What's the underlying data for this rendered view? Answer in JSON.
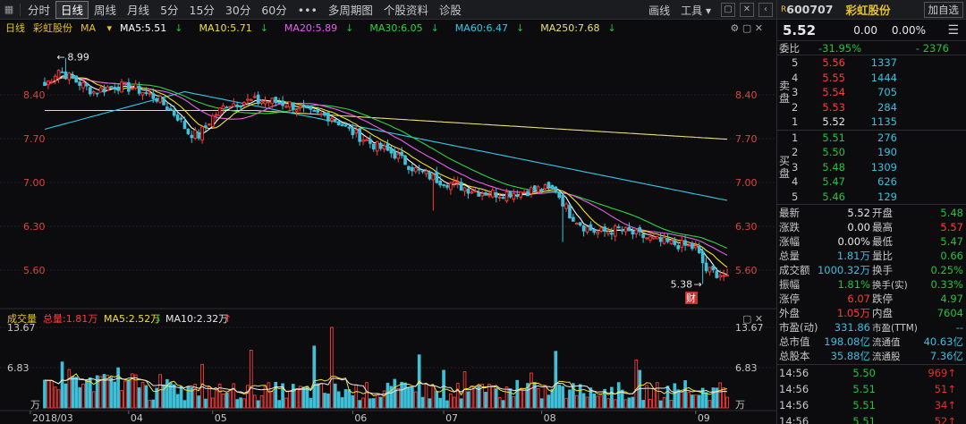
{
  "toolbar": {
    "tabs": [
      "分时",
      "日线",
      "周线",
      "月线",
      "5分",
      "15分",
      "30分",
      "60分",
      "•••",
      "多周期图",
      "个股资料",
      "诊股"
    ],
    "active_tab": "日线",
    "right": [
      "画线",
      "工具"
    ]
  },
  "legend": {
    "period": "日线",
    "stock": "彩虹股份",
    "indicator": "MA",
    "ma": [
      {
        "label": "MA5:5.51",
        "color": "#ffffff"
      },
      {
        "label": "MA10:5.71",
        "color": "#f2e02e"
      },
      {
        "label": "MA20:5.89",
        "color": "#e85fe8"
      },
      {
        "label": "MA30:6.05",
        "color": "#2ed240"
      },
      {
        "label": "MA60:6.47",
        "color": "#35c7e6"
      },
      {
        "label": "MA250:7.68",
        "color": "#e8e07a"
      }
    ]
  },
  "vol_legend": {
    "title": "成交量",
    "total": "总量:1.81万",
    "ma5": "MA5:2.52万",
    "ma10": "MA10:2.32万"
  },
  "axis": {
    "price_ticks": [
      "8.40",
      "7.70",
      "7.00",
      "6.30",
      "5.60"
    ],
    "vol_ticks": [
      "13.67",
      "6.83",
      "万"
    ],
    "x_labels": [
      "2018/03",
      "04",
      "05",
      "06",
      "07",
      "08",
      "09"
    ],
    "high_label": "8.99",
    "low_label": "5.38",
    "cai_badge": "财"
  },
  "chart_data": {
    "type": "candlestick",
    "ylim": [
      5.2,
      9.2
    ],
    "max_price": 8.99,
    "min_price": 5.38,
    "vol_max_wan": 13.67,
    "ma_last": {
      "MA5": 5.51,
      "MA10": 5.71,
      "MA20": 5.89,
      "MA30": 6.05,
      "MA60": 6.47,
      "MA250": 7.68
    },
    "anchors": [
      [
        0,
        8.55
      ],
      [
        4,
        8.8
      ],
      [
        8,
        8.65
      ],
      [
        14,
        8.45
      ],
      [
        20,
        8.55
      ],
      [
        26,
        8.5
      ],
      [
        32,
        8.35
      ],
      [
        38,
        8.05
      ],
      [
        41,
        7.8
      ],
      [
        44,
        7.75
      ],
      [
        48,
        8.05
      ],
      [
        52,
        8.25
      ],
      [
        58,
        8.3
      ],
      [
        64,
        8.3
      ],
      [
        70,
        8.25
      ],
      [
        76,
        8.1
      ],
      [
        82,
        8.05
      ],
      [
        88,
        7.8
      ],
      [
        94,
        7.6
      ],
      [
        100,
        7.45
      ],
      [
        106,
        7.2
      ],
      [
        112,
        7.05
      ],
      [
        118,
        6.95
      ],
      [
        124,
        6.85
      ],
      [
        130,
        6.82
      ],
      [
        136,
        6.85
      ],
      [
        142,
        6.9
      ],
      [
        146,
        6.88
      ],
      [
        150,
        6.5
      ],
      [
        154,
        6.3
      ],
      [
        158,
        6.2
      ],
      [
        164,
        6.25
      ],
      [
        170,
        6.15
      ],
      [
        176,
        6.05
      ],
      [
        182,
        6.0
      ],
      [
        186,
        5.95
      ],
      [
        189,
        5.6
      ],
      [
        194,
        5.52
      ]
    ]
  },
  "panel": {
    "code": "600707",
    "name": "彩虹股份",
    "add_label": "加自选",
    "price": "5.52",
    "change": "0.00",
    "change_pct": "0.00%",
    "weibi_label": "委比",
    "weibi": "-31.95%",
    "weicha": "- 2376",
    "sell_label": [
      "卖",
      "盘"
    ],
    "buy_label": [
      "买",
      "盘"
    ],
    "asks": [
      {
        "lv": "5",
        "price": "5.56",
        "vol": "1337"
      },
      {
        "lv": "4",
        "price": "5.55",
        "vol": "1444"
      },
      {
        "lv": "3",
        "price": "5.54",
        "vol": "705"
      },
      {
        "lv": "2",
        "price": "5.53",
        "vol": "284"
      },
      {
        "lv": "1",
        "price": "5.52",
        "vol": "1135"
      }
    ],
    "bids": [
      {
        "lv": "1",
        "price": "5.51",
        "vol": "276"
      },
      {
        "lv": "2",
        "price": "5.50",
        "vol": "190"
      },
      {
        "lv": "3",
        "price": "5.48",
        "vol": "1309"
      },
      {
        "lv": "4",
        "price": "5.47",
        "vol": "626"
      },
      {
        "lv": "5",
        "price": "5.46",
        "vol": "129"
      }
    ],
    "stats": [
      [
        "最新",
        "5.52",
        "wh",
        "开盘",
        "5.48",
        "dn"
      ],
      [
        "涨跌",
        "0.00",
        "wh",
        "最高",
        "5.57",
        "up"
      ],
      [
        "涨幅",
        "0.00%",
        "wh",
        "最低",
        "5.47",
        "dn"
      ],
      [
        "总量",
        "1.81万",
        "cy",
        "量比",
        "0.66",
        "dn"
      ],
      [
        "成交额",
        "1000.32万",
        "cy",
        "换手",
        "0.25%",
        "dn"
      ],
      [
        "振幅",
        "1.81%",
        "dn",
        "换手(实)",
        "0.33%",
        "dn"
      ],
      [
        "涨停",
        "6.07",
        "up",
        "跌停",
        "4.97",
        "dn"
      ],
      [
        "外盘",
        "1.05万",
        "up",
        "内盘",
        "7604",
        "dn"
      ],
      [
        "市盈(动)",
        "331.86",
        "cy",
        "市盈(TTM)",
        "--",
        "cy"
      ],
      [
        "总市值",
        "198.08亿",
        "cy",
        "流通值",
        "40.63亿",
        "cy"
      ],
      [
        "总股本",
        "35.88亿",
        "cy",
        "流通股",
        "7.36亿",
        "cy"
      ]
    ],
    "ticks": [
      {
        "time": "14:56",
        "price": "5.50",
        "vol": "969"
      },
      {
        "time": "14:56",
        "price": "5.51",
        "vol": "51"
      },
      {
        "time": "14:56",
        "price": "5.51",
        "vol": "34"
      },
      {
        "time": "14:56",
        "price": "5.51",
        "vol": "52"
      }
    ]
  }
}
